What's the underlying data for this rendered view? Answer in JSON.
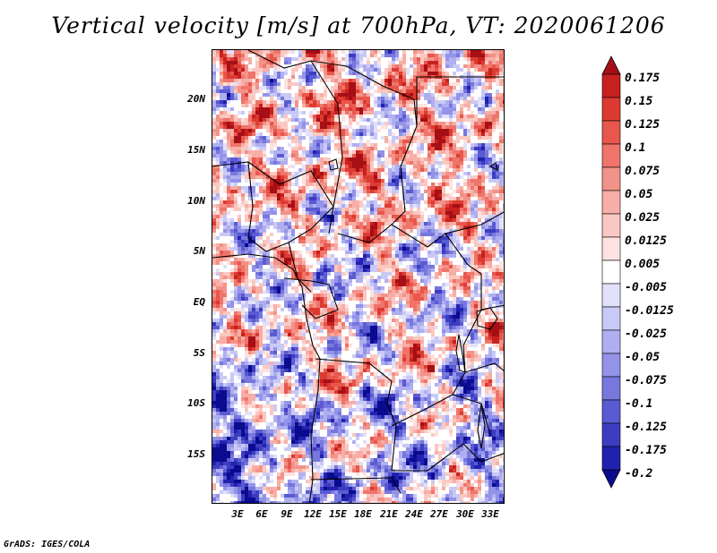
{
  "title": "Vertical velocity [m/s] at 700hPa, VT: 2020061206",
  "latitude_labels": [
    "20N",
    "15N",
    "10N",
    "5N",
    "EQ",
    "5S",
    "10S",
    "15S"
  ],
  "longitude_labels": [
    "3E",
    "6E",
    "9E",
    "12E",
    "15E",
    "18E",
    "21E",
    "24E",
    "27E",
    "30E",
    "33E"
  ],
  "colorbar": {
    "labels": [
      "0.175",
      "0.15",
      "0.125",
      "0.1",
      "0.075",
      "0.05",
      "0.025",
      "0.0125",
      "0.005",
      "-0.005",
      "-0.0125",
      "-0.025",
      "-0.05",
      "-0.075",
      "-0.1",
      "-0.125",
      "-0.175",
      "-0.2"
    ],
    "colors": [
      "#a50f15",
      "#c8201e",
      "#dd3b32",
      "#e8564c",
      "#ef746a",
      "#f39288",
      "#f7aea6",
      "#fac8c2",
      "#fde2df",
      "#ffffff",
      "#e1e1fb",
      "#c9c9f6",
      "#afaff0",
      "#9393e8",
      "#7777de",
      "#5a5ad2",
      "#3d3dc2",
      "#2222b0",
      "#0b0b8f"
    ]
  },
  "footer": "GrADS: IGES/COLA"
}
